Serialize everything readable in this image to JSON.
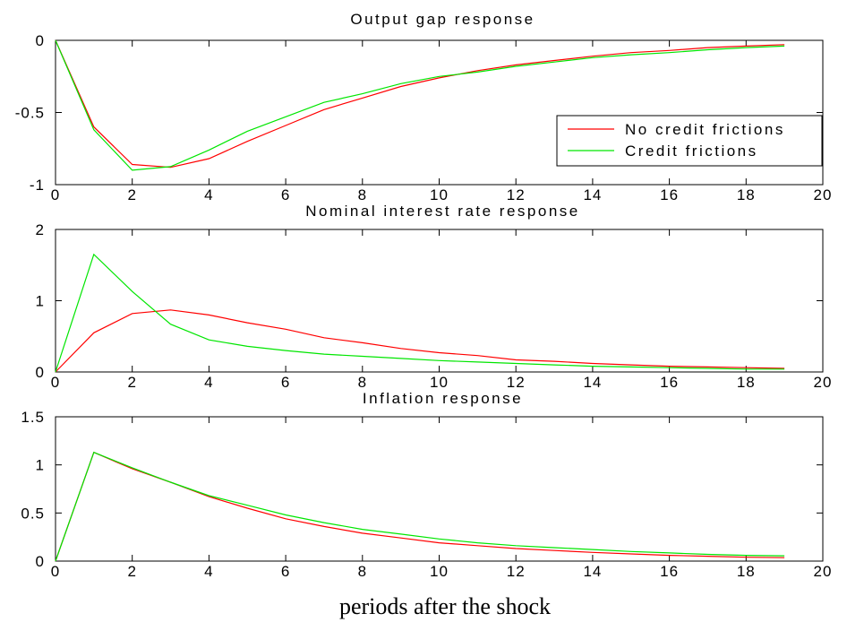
{
  "colors": {
    "no_credit_frictions": "#ff0000",
    "credit_frictions": "#00e600",
    "axes": "#000000",
    "background": "#ffffff"
  },
  "xlabel": "periods after the shock",
  "chart_data": [
    {
      "type": "line",
      "title": "Output gap response",
      "xlabel": "",
      "ylabel": "",
      "xlim": [
        0,
        20
      ],
      "ylim": [
        -1,
        0
      ],
      "xticks": [
        0,
        2,
        4,
        6,
        8,
        10,
        12,
        14,
        16,
        18,
        20
      ],
      "yticks": [
        -1,
        -0.5,
        0
      ],
      "ytick_labels": [
        "-1",
        "-0.5",
        "0"
      ],
      "grid": false,
      "legend": "right",
      "x": [
        0,
        1,
        2,
        3,
        4,
        5,
        6,
        7,
        8,
        9,
        10,
        11,
        12,
        13,
        14,
        15,
        16,
        17,
        18,
        19
      ],
      "series": [
        {
          "name": "No credit frictions",
          "color": "#ff0000",
          "values": [
            0,
            -0.6,
            -0.86,
            -0.88,
            -0.82,
            -0.7,
            -0.59,
            -0.48,
            -0.4,
            -0.32,
            -0.26,
            -0.21,
            -0.17,
            -0.14,
            -0.11,
            -0.085,
            -0.07,
            -0.05,
            -0.04,
            -0.03
          ]
        },
        {
          "name": "Credit frictions",
          "color": "#00e600",
          "values": [
            0,
            -0.62,
            -0.9,
            -0.875,
            -0.76,
            -0.63,
            -0.53,
            -0.43,
            -0.37,
            -0.3,
            -0.25,
            -0.22,
            -0.18,
            -0.15,
            -0.12,
            -0.1,
            -0.085,
            -0.065,
            -0.05,
            -0.04
          ]
        }
      ]
    },
    {
      "type": "line",
      "title": "Nominal interest rate response",
      "xlabel": "",
      "ylabel": "",
      "xlim": [
        0,
        20
      ],
      "ylim": [
        0,
        2
      ],
      "xticks": [
        0,
        2,
        4,
        6,
        8,
        10,
        12,
        14,
        16,
        18,
        20
      ],
      "yticks": [
        0,
        1,
        2
      ],
      "ytick_labels": [
        "0",
        "1",
        "2"
      ],
      "grid": false,
      "legend": "none",
      "x": [
        0,
        1,
        2,
        3,
        4,
        5,
        6,
        7,
        8,
        9,
        10,
        11,
        12,
        13,
        14,
        15,
        16,
        17,
        18,
        19
      ],
      "series": [
        {
          "color": "#ff0000",
          "values": [
            0,
            0.55,
            0.82,
            0.87,
            0.8,
            0.69,
            0.6,
            0.48,
            0.41,
            0.33,
            0.27,
            0.23,
            0.17,
            0.15,
            0.12,
            0.1,
            0.08,
            0.07,
            0.06,
            0.05
          ]
        },
        {
          "color": "#00e600",
          "values": [
            0,
            1.65,
            1.13,
            0.67,
            0.45,
            0.36,
            0.3,
            0.25,
            0.22,
            0.19,
            0.16,
            0.14,
            0.12,
            0.1,
            0.08,
            0.07,
            0.06,
            0.05,
            0.04,
            0.04
          ]
        }
      ]
    },
    {
      "type": "line",
      "title": "Inflation response",
      "xlabel": "",
      "ylabel": "",
      "xlim": [
        0,
        20
      ],
      "ylim": [
        0,
        1.5
      ],
      "xticks": [
        0,
        2,
        4,
        6,
        8,
        10,
        12,
        14,
        16,
        18,
        20
      ],
      "yticks": [
        0,
        0.5,
        1,
        1.5
      ],
      "ytick_labels": [
        "0",
        "0.5",
        "1",
        "1.5"
      ],
      "grid": false,
      "legend": "none",
      "x": [
        0,
        1,
        2,
        3,
        4,
        5,
        6,
        7,
        8,
        9,
        10,
        11,
        12,
        13,
        14,
        15,
        16,
        17,
        18,
        19
      ],
      "series": [
        {
          "color": "#ff0000",
          "values": [
            0,
            1.13,
            0.96,
            0.82,
            0.67,
            0.55,
            0.44,
            0.36,
            0.29,
            0.24,
            0.19,
            0.16,
            0.13,
            0.11,
            0.09,
            0.075,
            0.06,
            0.05,
            0.04,
            0.035
          ]
        },
        {
          "color": "#00e600",
          "values": [
            0,
            1.13,
            0.97,
            0.82,
            0.68,
            0.58,
            0.48,
            0.4,
            0.33,
            0.28,
            0.23,
            0.19,
            0.16,
            0.14,
            0.12,
            0.1,
            0.085,
            0.07,
            0.06,
            0.055
          ]
        }
      ]
    }
  ]
}
